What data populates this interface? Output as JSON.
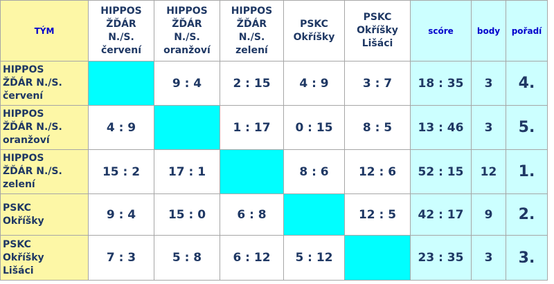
{
  "table": {
    "header": {
      "team": "TÝM",
      "opponents": [
        "HIPPOS\nŽĎÁR\nN./S.\nčervení",
        "HIPPOS\nŽĎÁR\nN./S.\noranžoví",
        "HIPPOS\nŽĎÁR\nN./S.\nzelení",
        "PSKC\nOkříšky",
        "PSKC\nOkříšky\nLišáci"
      ],
      "score": "scóre",
      "points": "body",
      "rank": "pořadí"
    },
    "rows": [
      {
        "team": "HIPPOS\nŽĎÁR N./S.\nčervení",
        "cells": [
          null,
          "9 : 4",
          "2 : 15",
          "4 : 9",
          "3 : 7"
        ],
        "score": "18 : 35",
        "points": 3,
        "rank": "4."
      },
      {
        "team": "HIPPOS\nŽĎÁR N./S.\noranžoví",
        "cells": [
          "4 : 9",
          null,
          "1 : 17",
          "0 : 15",
          "8 : 5"
        ],
        "score": "13 : 46",
        "points": 3,
        "rank": "5."
      },
      {
        "team": "HIPPOS\nŽĎÁR N./S.\nzelení",
        "cells": [
          "15 : 2",
          "17 : 1",
          null,
          "8 : 6",
          "12 : 6"
        ],
        "score": "52 : 15",
        "points": 12,
        "rank": "1."
      },
      {
        "team": "PSKC\nOkříšky",
        "cells": [
          "9 : 4",
          "15 : 0",
          "6 : 8",
          null,
          "12 : 5"
        ],
        "score": "42 : 17",
        "points": 9,
        "rank": "2."
      },
      {
        "team": "PSKC\nOkříšky\nLišáci",
        "cells": [
          "7 : 3",
          "5 : 8",
          "6 : 12",
          "5 : 12",
          null
        ],
        "score": "23 : 35",
        "points": 3,
        "rank": "3."
      }
    ]
  }
}
